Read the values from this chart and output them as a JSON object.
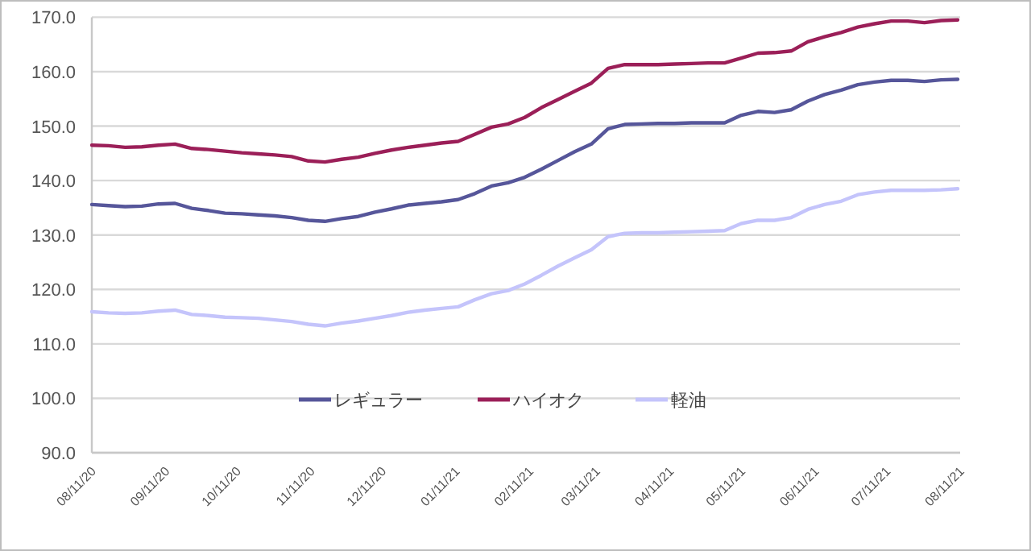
{
  "chart_data": {
    "type": "line",
    "x": [
      "2020-08-11",
      "2020-08-18",
      "2020-08-25",
      "2020-09-01",
      "2020-09-08",
      "2020-09-15",
      "2020-09-22",
      "2020-09-29",
      "2020-10-06",
      "2020-10-13",
      "2020-10-20",
      "2020-10-27",
      "2020-11-03",
      "2020-11-10",
      "2020-11-17",
      "2020-11-24",
      "2020-12-01",
      "2020-12-08",
      "2020-12-15",
      "2020-12-22",
      "2020-12-29",
      "2021-01-05",
      "2021-01-12",
      "2021-01-19",
      "2021-01-26",
      "2021-02-02",
      "2021-02-09",
      "2021-02-16",
      "2021-02-23",
      "2021-03-02",
      "2021-03-09",
      "2021-03-16",
      "2021-03-23",
      "2021-03-30",
      "2021-04-06",
      "2021-04-13",
      "2021-04-20",
      "2021-04-27",
      "2021-05-04",
      "2021-05-11",
      "2021-05-18",
      "2021-05-25",
      "2021-06-01",
      "2021-06-08",
      "2021-06-15",
      "2021-06-22",
      "2021-06-29",
      "2021-07-06",
      "2021-07-13",
      "2021-07-20",
      "2021-07-27",
      "2021-08-03",
      "2021-08-10"
    ],
    "series": [
      {
        "name": "レギュラー",
        "color": "#56569a",
        "values": [
          135.6,
          135.4,
          135.2,
          135.3,
          135.7,
          135.8,
          134.9,
          134.5,
          134.0,
          133.9,
          133.7,
          133.5,
          133.2,
          132.7,
          132.5,
          133.0,
          133.4,
          134.2,
          134.8,
          135.5,
          135.8,
          136.1,
          136.5,
          137.6,
          139.0,
          139.6,
          140.6,
          142.1,
          143.7,
          145.3,
          146.7,
          149.5,
          150.3,
          150.4,
          150.5,
          150.5,
          150.6,
          150.6,
          150.6,
          152.0,
          152.7,
          152.5,
          153.0,
          154.6,
          155.8,
          156.6,
          157.6,
          158.1,
          158.4,
          158.4,
          158.2,
          158.5,
          158.6
        ]
      },
      {
        "name": "ハイオク",
        "color": "#9b1f58",
        "values": [
          146.5,
          146.4,
          146.1,
          146.2,
          146.5,
          146.7,
          145.9,
          145.7,
          145.4,
          145.1,
          144.9,
          144.7,
          144.4,
          143.6,
          143.4,
          143.9,
          144.3,
          145.0,
          145.6,
          146.1,
          146.5,
          146.9,
          147.2,
          148.5,
          149.8,
          150.4,
          151.6,
          153.4,
          154.9,
          156.4,
          157.9,
          160.6,
          161.3,
          161.3,
          161.3,
          161.4,
          161.5,
          161.6,
          161.6,
          162.5,
          163.4,
          163.5,
          163.8,
          165.5,
          166.4,
          167.2,
          168.2,
          168.8,
          169.3,
          169.3,
          169.0,
          169.4,
          169.5
        ]
      },
      {
        "name": "軽油",
        "color": "#c4c4fb",
        "values": [
          115.9,
          115.7,
          115.6,
          115.7,
          116.0,
          116.2,
          115.4,
          115.2,
          114.9,
          114.8,
          114.7,
          114.4,
          114.1,
          113.6,
          113.3,
          113.8,
          114.2,
          114.7,
          115.2,
          115.8,
          116.2,
          116.5,
          116.8,
          118.1,
          119.2,
          119.8,
          121.0,
          122.6,
          124.3,
          125.8,
          127.3,
          129.7,
          130.3,
          130.4,
          130.4,
          130.5,
          130.6,
          130.7,
          130.8,
          132.1,
          132.7,
          132.7,
          133.2,
          134.7,
          135.6,
          136.2,
          137.4,
          137.9,
          138.2,
          138.2,
          138.2,
          138.3,
          138.5
        ]
      }
    ],
    "xlim": [
      "2020-08-11",
      "2021-08-11"
    ],
    "xticks": [
      {
        "value": "2020-08-11",
        "label": "08/11/20"
      },
      {
        "value": "2020-09-11",
        "label": "09/11/20"
      },
      {
        "value": "2020-10-11",
        "label": "10/11/20"
      },
      {
        "value": "2020-11-11",
        "label": "11/11/20"
      },
      {
        "value": "2020-12-11",
        "label": "12/11/20"
      },
      {
        "value": "2021-01-11",
        "label": "01/11/21"
      },
      {
        "value": "2021-02-11",
        "label": "02/11/21"
      },
      {
        "value": "2021-03-11",
        "label": "03/11/21"
      },
      {
        "value": "2021-04-11",
        "label": "04/11/21"
      },
      {
        "value": "2021-05-11",
        "label": "05/11/21"
      },
      {
        "value": "2021-06-11",
        "label": "06/11/21"
      },
      {
        "value": "2021-07-11",
        "label": "07/11/21"
      },
      {
        "value": "2021-08-11",
        "label": "08/11/21"
      }
    ],
    "ylim": [
      90,
      170
    ],
    "yticks": [
      {
        "value": 90,
        "label": "90.0"
      },
      {
        "value": 100,
        "label": "100.0"
      },
      {
        "value": 110,
        "label": "110.0"
      },
      {
        "value": 120,
        "label": "120.0"
      },
      {
        "value": 130,
        "label": "130.0"
      },
      {
        "value": 140,
        "label": "140.0"
      },
      {
        "value": 150,
        "label": "150.0"
      },
      {
        "value": 160,
        "label": "160.0"
      },
      {
        "value": 170,
        "label": "170.0"
      }
    ],
    "grid": "y",
    "legend": "bottom",
    "marker": "none",
    "line_style": "solid"
  }
}
